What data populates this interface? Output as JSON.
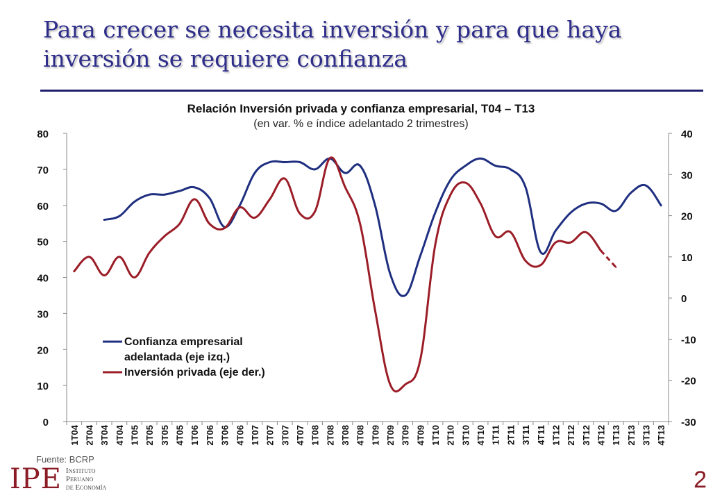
{
  "slide": {
    "title": "Para crecer se necesita inversión y para que haya inversión se requiere confianza",
    "source": "Fuente: BCRP",
    "logo_mark": "IPE",
    "logo_lines": [
      "Instituto",
      "Peruano",
      "de Economía"
    ],
    "page_number": "2"
  },
  "colors": {
    "title": "#2e2e8a",
    "confidence_series": "#1f2f80",
    "investment_series": "#9b1d27",
    "page_number": "#8b1c25"
  },
  "chart_data": {
    "type": "line",
    "title": "Relación Inversión privada y confianza empresarial, T04 –   T13",
    "subtitle": "(en var. % e índice adelantado 2 trimestres)",
    "categories": [
      "1T04",
      "2T04",
      "3T04",
      "4T04",
      "1T05",
      "2T05",
      "3T05",
      "4T05",
      "1T06",
      "2T06",
      "3T06",
      "4T06",
      "1T07",
      "2T07",
      "3T07",
      "4T07",
      "1T08",
      "2T08",
      "3T08",
      "4T08",
      "1T09",
      "2T09",
      "3T09",
      "4T09",
      "1T10",
      "2T10",
      "3T10",
      "4T10",
      "1T11",
      "2T11",
      "3T11",
      "4T11",
      "1T12",
      "2T12",
      "3T12",
      "4T12",
      "1T13",
      "2T13",
      "3T13",
      "4T13"
    ],
    "y_left": {
      "min": 0,
      "max": 80,
      "ticks": [
        0,
        10,
        20,
        30,
        40,
        50,
        60,
        70,
        80
      ]
    },
    "y_right": {
      "min": -30,
      "max": 40,
      "ticks": [
        -30,
        -20,
        -10,
        0,
        10,
        20,
        30,
        40
      ]
    },
    "legend_position": "bottom-left",
    "grid": false,
    "series": [
      {
        "name": "Confianza empresarial adelantada (eje izq.)",
        "legend_lines": [
          "Confianza empresarial",
          "adelantada (eje izq.)"
        ],
        "axis": "left",
        "values": [
          null,
          null,
          56,
          57,
          61,
          63,
          63,
          64,
          65,
          62,
          54,
          60,
          69,
          72,
          72,
          72,
          70,
          73,
          69,
          71,
          60,
          41,
          35,
          46,
          58,
          67,
          71,
          73,
          71,
          70,
          65,
          47,
          53,
          58,
          60.5,
          60.5,
          58.5,
          63.5,
          65.5,
          60
        ],
        "dashed_from_index": null
      },
      {
        "name": "Inversión privada (eje der.)",
        "legend_lines": [
          "Inversión privada (eje der.)"
        ],
        "axis": "right",
        "values": [
          6.5,
          10,
          5.5,
          10,
          5,
          11,
          15,
          18,
          24,
          18,
          17,
          22,
          19.5,
          24,
          29,
          20.5,
          21,
          34,
          27,
          18,
          -3,
          -21,
          -21,
          -15,
          13,
          25,
          28,
          23,
          15,
          16,
          9,
          8,
          13.5,
          13.5,
          16,
          11.5,
          7.5,
          null,
          null,
          null
        ],
        "dashed_from_index": 35
      }
    ]
  }
}
